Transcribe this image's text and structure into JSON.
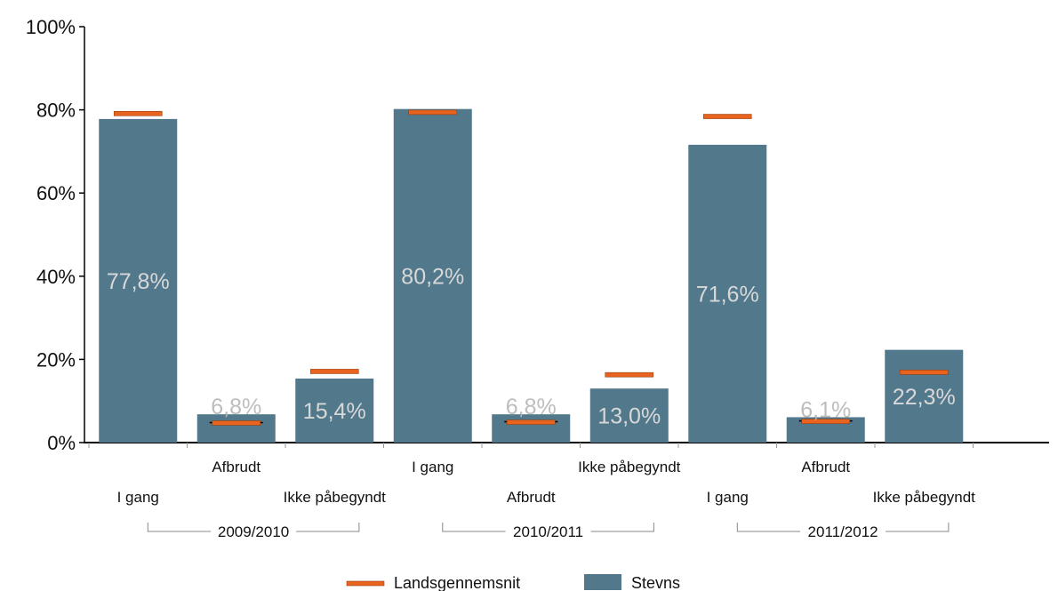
{
  "colors": {
    "bar": "#52788c",
    "marker": "#e8641e",
    "marker_edge": "#9a3c10",
    "label_on_bar": "#d8d8d8",
    "label_above_bar": "#bdbdbd",
    "axis": "#000000",
    "bracket": "#888888"
  },
  "chart_data": {
    "type": "bar",
    "ylim": [
      0,
      100
    ],
    "yticks": [
      0,
      20,
      40,
      60,
      80,
      100
    ],
    "ytick_labels": [
      "0%",
      "20%",
      "40%",
      "60%",
      "80%",
      "100%"
    ],
    "groups": [
      {
        "label": "2009/2010",
        "bars": [
          {
            "category": "I gang",
            "value": 77.8,
            "label": "77,8%",
            "average": 79.0
          },
          {
            "category": "Afbrudt",
            "value": 6.8,
            "label": "6,8%",
            "average": 4.6
          },
          {
            "category": "Ikke påbegyndt",
            "value": 15.4,
            "label": "15,4%",
            "average": 17.0
          }
        ]
      },
      {
        "label": "2010/2011",
        "bars": [
          {
            "category": "I gang",
            "value": 80.2,
            "label": "80,2%",
            "average": 79.3
          },
          {
            "category": "Afbrudt",
            "value": 6.8,
            "label": "6,8%",
            "average": 4.8
          },
          {
            "category": "Ikke påbegyndt",
            "value": 13.0,
            "label": "13,0%",
            "average": 16.2
          }
        ]
      },
      {
        "label": "2011/2012",
        "bars": [
          {
            "category": "I gang",
            "value": 71.6,
            "label": "71,6%",
            "average": 78.3
          },
          {
            "category": "Afbrudt",
            "value": 6.1,
            "label": "6,1%",
            "average": 5.0
          },
          {
            "category": "Ikke påbegyndt",
            "value": 22.3,
            "label": "22,3%",
            "average": 16.8
          }
        ]
      }
    ],
    "legend": {
      "position": "bottom-center",
      "entries": [
        {
          "name": "Landsgennemsnit",
          "kind": "marker"
        },
        {
          "name": "Stevns",
          "kind": "bar"
        }
      ]
    }
  }
}
